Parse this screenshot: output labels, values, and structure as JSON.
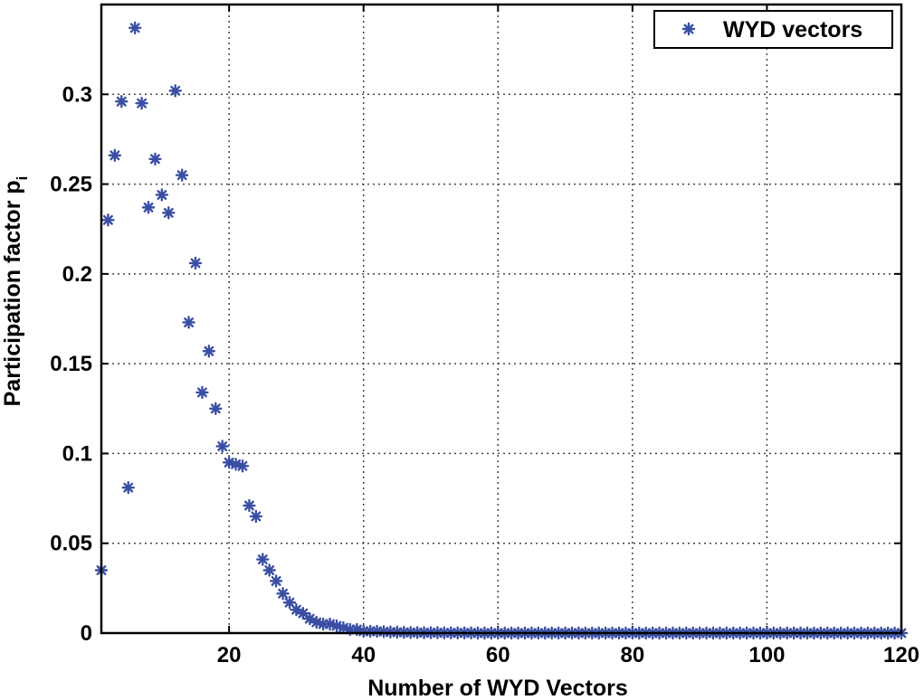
{
  "chart_data": {
    "type": "scatter",
    "title": "",
    "xlabel": "Number of WYD Vectors",
    "ylabel": "Participation factor p",
    "ylabel_subscript": "i",
    "xlim": [
      1,
      120
    ],
    "ylim": [
      0,
      0.35
    ],
    "xticks": [
      20,
      40,
      60,
      80,
      100,
      120
    ],
    "xtick_labels": [
      "20",
      "40",
      "60",
      "80",
      "100",
      "120"
    ],
    "yticks": [
      0,
      0.05,
      0.1,
      0.15,
      0.2,
      0.25,
      0.3
    ],
    "ytick_labels": [
      "0",
      "0.05",
      "0.1",
      "0.15",
      "0.2",
      "0.25",
      "0.3"
    ],
    "grid": true,
    "legend_position": "top-right",
    "marker_color": "#3a4fa3",
    "marker": "asterisk",
    "series": [
      {
        "name": "WYD vectors",
        "x": [
          1,
          2,
          3,
          4,
          5,
          6,
          7,
          8,
          9,
          10,
          11,
          12,
          13,
          14,
          15,
          16,
          17,
          18,
          19,
          20,
          21,
          22,
          23,
          24,
          25,
          26,
          27,
          28,
          29,
          30,
          31,
          32,
          33,
          34,
          35,
          36,
          37,
          38,
          39,
          40,
          41,
          42,
          43,
          44,
          45,
          46,
          47,
          48,
          49,
          50,
          51,
          52,
          53,
          54,
          55,
          56,
          57,
          58,
          59,
          60,
          61,
          62,
          63,
          64,
          65,
          66,
          67,
          68,
          69,
          70,
          71,
          72,
          73,
          74,
          75,
          76,
          77,
          78,
          79,
          80,
          81,
          82,
          83,
          84,
          85,
          86,
          87,
          88,
          89,
          90,
          91,
          92,
          93,
          94,
          95,
          96,
          97,
          98,
          99,
          100,
          101,
          102,
          103,
          104,
          105,
          106,
          107,
          108,
          109,
          110,
          111,
          112,
          113,
          114,
          115,
          116,
          117,
          118,
          119,
          120
        ],
        "y": [
          0.035,
          0.23,
          0.266,
          0.296,
          0.081,
          0.337,
          0.295,
          0.237,
          0.264,
          0.244,
          0.234,
          0.302,
          0.255,
          0.173,
          0.206,
          0.134,
          0.157,
          0.125,
          0.104,
          0.095,
          0.094,
          0.093,
          0.071,
          0.065,
          0.041,
          0.035,
          0.029,
          0.022,
          0.017,
          0.013,
          0.011,
          0.008,
          0.006,
          0.005,
          0.005,
          0.004,
          0.003,
          0.002,
          0.002,
          0.001,
          0.001,
          0.001,
          0.0008,
          0.0006,
          0.0005,
          0.0004,
          0.0003,
          0.0003,
          0.0002,
          0.0002,
          0.0002,
          0.0001,
          0.0001,
          0.0001,
          0.0001,
          0.0001,
          0,
          0,
          0,
          0,
          0,
          0,
          0,
          0,
          0,
          0,
          0,
          0,
          0,
          0,
          0,
          0,
          0,
          0,
          0,
          0,
          0,
          0,
          0,
          0,
          0,
          0,
          0,
          0,
          0,
          0,
          0,
          0,
          0,
          0,
          0,
          0,
          0,
          0,
          0,
          0,
          0,
          0,
          0,
          0,
          0,
          0,
          0,
          0,
          0,
          0,
          0,
          0,
          0,
          0,
          0,
          0,
          0,
          0,
          0,
          0,
          0,
          0,
          0,
          0
        ]
      }
    ]
  }
}
